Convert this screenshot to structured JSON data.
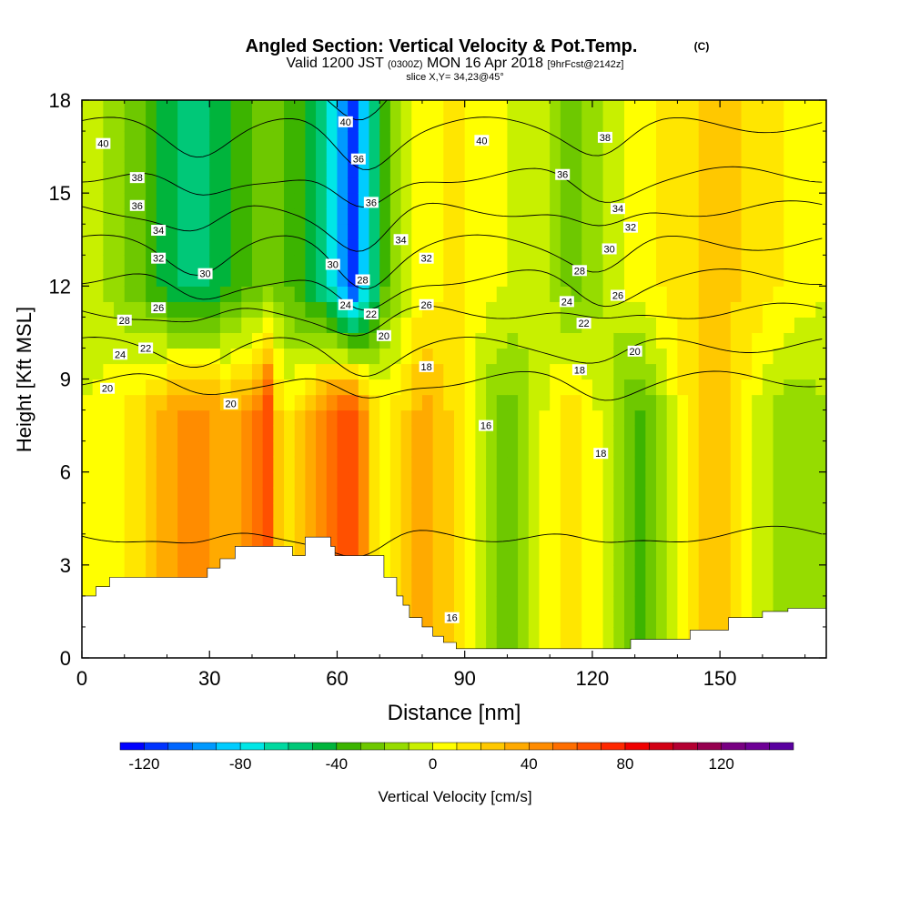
{
  "chart_data": {
    "type": "heatmap",
    "title": "Angled Section: Vertical Velocity & Pot.Temp.",
    "title_unit": "(C)",
    "subtitle_parts": [
      "Valid 1200 JST",
      "(0300Z)",
      "MON 16 Apr 2018",
      "[9hrFcst@2142z]"
    ],
    "slice_label": "slice X,Y= 34,23@45°",
    "xlabel": "Distance [nm]",
    "ylabel": "Height [Kft MSL]",
    "xlim": [
      0,
      175
    ],
    "ylim": [
      0,
      18
    ],
    "xticks": [
      0,
      30,
      60,
      90,
      120,
      150
    ],
    "yticks": [
      0,
      3,
      6,
      9,
      12,
      15,
      18
    ],
    "colorbar": {
      "label": "Vertical Velocity [cm/s]",
      "min": -130,
      "max": 150,
      "step": 10,
      "tick_labels": [
        "-120",
        "-80",
        "-40",
        "0",
        "40",
        "80",
        "120"
      ],
      "tick_values": [
        -120,
        -80,
        -40,
        0,
        40,
        80,
        120
      ],
      "colors": [
        "#0000ff",
        "#0033ff",
        "#0066ff",
        "#0099ff",
        "#00ccff",
        "#00e6e6",
        "#00d9a0",
        "#00c878",
        "#00b43c",
        "#3cb400",
        "#6ec800",
        "#96dc00",
        "#c8f000",
        "#ffff00",
        "#ffe600",
        "#ffc800",
        "#ffaa00",
        "#ff8c00",
        "#ff6e00",
        "#ff5000",
        "#ff2800",
        "#f00000",
        "#d20014",
        "#b40032",
        "#960050",
        "#780082",
        "#6e0096",
        "#5a00a0"
      ]
    },
    "vertical_velocity_profile": {
      "x": [
        0,
        5,
        10,
        15,
        20,
        25,
        30,
        35,
        40,
        44,
        47,
        50,
        55,
        60,
        63,
        66,
        70,
        75,
        80,
        85,
        90,
        95,
        100,
        105,
        110,
        115,
        120,
        125,
        130,
        135,
        140,
        145,
        150,
        155,
        160,
        165,
        170,
        175
      ],
      "w_low": [
        0,
        5,
        10,
        20,
        35,
        45,
        40,
        30,
        45,
        70,
        5,
        15,
        35,
        60,
        75,
        45,
        5,
        15,
        35,
        25,
        5,
        -15,
        -25,
        -15,
        5,
        15,
        5,
        -15,
        -35,
        -20,
        5,
        20,
        25,
        10,
        -5,
        -15,
        -15,
        -10
      ],
      "w_high": [
        -5,
        -10,
        -20,
        -30,
        -45,
        -55,
        -50,
        -40,
        -30,
        -20,
        -25,
        -35,
        -50,
        -80,
        -120,
        -90,
        -40,
        -10,
        5,
        10,
        10,
        5,
        0,
        -5,
        -10,
        -25,
        -15,
        -5,
        5,
        10,
        15,
        20,
        25,
        20,
        15,
        10,
        5,
        0
      ]
    },
    "potential_temperature_contours": {
      "levels": [
        16,
        18,
        20,
        22,
        24,
        26,
        28,
        30,
        32,
        34,
        36,
        38,
        40
      ],
      "labels": [
        {
          "text": "40",
          "x": 5,
          "y": 16.6
        },
        {
          "text": "38",
          "x": 13,
          "y": 15.5
        },
        {
          "text": "36",
          "x": 13,
          "y": 14.6
        },
        {
          "text": "34",
          "x": 18,
          "y": 13.8
        },
        {
          "text": "32",
          "x": 18,
          "y": 12.9
        },
        {
          "text": "30",
          "x": 29,
          "y": 12.4
        },
        {
          "text": "28",
          "x": 10,
          "y": 10.9
        },
        {
          "text": "26",
          "x": 18,
          "y": 11.3
        },
        {
          "text": "24",
          "x": 9,
          "y": 9.8
        },
        {
          "text": "22",
          "x": 15,
          "y": 10.0
        },
        {
          "text": "20",
          "x": 6,
          "y": 8.7
        },
        {
          "text": "20",
          "x": 35,
          "y": 8.2
        },
        {
          "text": "40",
          "x": 62,
          "y": 17.3
        },
        {
          "text": "36",
          "x": 65,
          "y": 16.1
        },
        {
          "text": "36",
          "x": 68,
          "y": 14.7
        },
        {
          "text": "34",
          "x": 75,
          "y": 13.5
        },
        {
          "text": "32",
          "x": 81,
          "y": 12.9
        },
        {
          "text": "30",
          "x": 59,
          "y": 12.7
        },
        {
          "text": "28",
          "x": 66,
          "y": 12.2
        },
        {
          "text": "26",
          "x": 81,
          "y": 11.4
        },
        {
          "text": "24",
          "x": 62,
          "y": 11.4
        },
        {
          "text": "22",
          "x": 68,
          "y": 11.1
        },
        {
          "text": "20",
          "x": 71,
          "y": 10.4
        },
        {
          "text": "18",
          "x": 81,
          "y": 9.4
        },
        {
          "text": "16",
          "x": 95,
          "y": 7.5
        },
        {
          "text": "16",
          "x": 87,
          "y": 1.3
        },
        {
          "text": "40",
          "x": 94,
          "y": 16.7
        },
        {
          "text": "38",
          "x": 123,
          "y": 16.8
        },
        {
          "text": "36",
          "x": 113,
          "y": 15.6
        },
        {
          "text": "34",
          "x": 126,
          "y": 14.5
        },
        {
          "text": "32",
          "x": 129,
          "y": 13.9
        },
        {
          "text": "30",
          "x": 124,
          "y": 13.2
        },
        {
          "text": "28",
          "x": 117,
          "y": 12.5
        },
        {
          "text": "26",
          "x": 126,
          "y": 11.7
        },
        {
          "text": "24",
          "x": 114,
          "y": 11.5
        },
        {
          "text": "22",
          "x": 118,
          "y": 10.8
        },
        {
          "text": "20",
          "x": 130,
          "y": 9.9
        },
        {
          "text": "18",
          "x": 117,
          "y": 9.3
        },
        {
          "text": "18",
          "x": 122,
          "y": 6.6
        }
      ]
    },
    "terrain": {
      "x": [
        0,
        3.3,
        6.5,
        10,
        20,
        29.5,
        32.5,
        36,
        46.5,
        49.5,
        52.5,
        58.5,
        59.5,
        64.5,
        71,
        74,
        75.5,
        77,
        80,
        82.5,
        85,
        88,
        90,
        112,
        121,
        126,
        129,
        143,
        152,
        160,
        166,
        175
      ],
      "height": [
        2.0,
        2.3,
        2.6,
        2.6,
        2.6,
        2.9,
        3.2,
        3.6,
        3.6,
        3.3,
        3.9,
        3.6,
        3.3,
        3.3,
        2.6,
        2.0,
        1.7,
        1.3,
        1.0,
        0.7,
        0.5,
        0.3,
        0.3,
        0.3,
        0.3,
        0.3,
        0.6,
        0.9,
        1.3,
        1.5,
        1.6,
        1.6
      ]
    }
  }
}
